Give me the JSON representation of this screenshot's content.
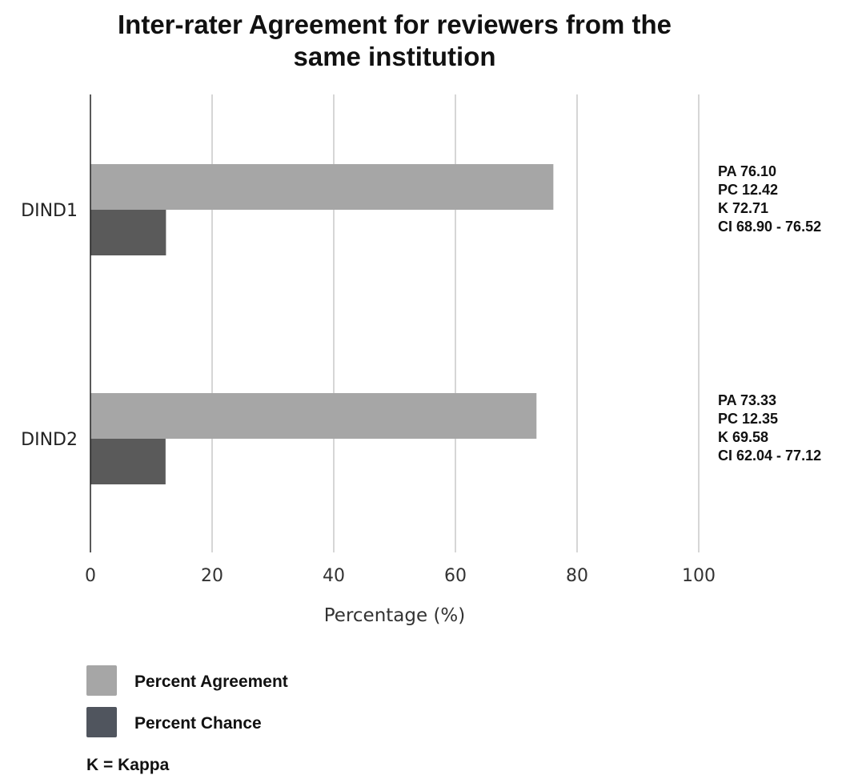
{
  "chart_data": {
    "type": "bar",
    "orientation": "horizontal",
    "title_lines": [
      "Inter-rater Agreement for reviewers from the",
      "same institution"
    ],
    "xlabel": "Percentage (%)",
    "ylabel": "",
    "xlim": [
      0,
      100
    ],
    "xticks": [
      0,
      20,
      40,
      60,
      80,
      100
    ],
    "grid": "vertical",
    "categories": [
      "DIND1",
      "DIND2"
    ],
    "series": [
      {
        "name": "Percent Agreement",
        "values": [
          76.1,
          73.33
        ],
        "color": "#a6a6a6"
      },
      {
        "name": "Percent Chance",
        "values": [
          12.42,
          12.35
        ],
        "color": "#5a5a5a"
      }
    ],
    "annotations": [
      [
        "PA 76.10",
        "PC 12.42",
        "K 72.71",
        "CI 68.90 - 76.52"
      ],
      [
        "PA 73.33",
        "PC 12.35",
        "K 69.58",
        "CI 62.04 - 77.12"
      ]
    ],
    "legend": {
      "placement": "bottom-left",
      "entries": [
        {
          "label": "Percent Agreement",
          "color": "#a6a6a6"
        },
        {
          "label": "Percent Chance",
          "color": "#50555e"
        }
      ],
      "note": "K = Kappa"
    }
  }
}
